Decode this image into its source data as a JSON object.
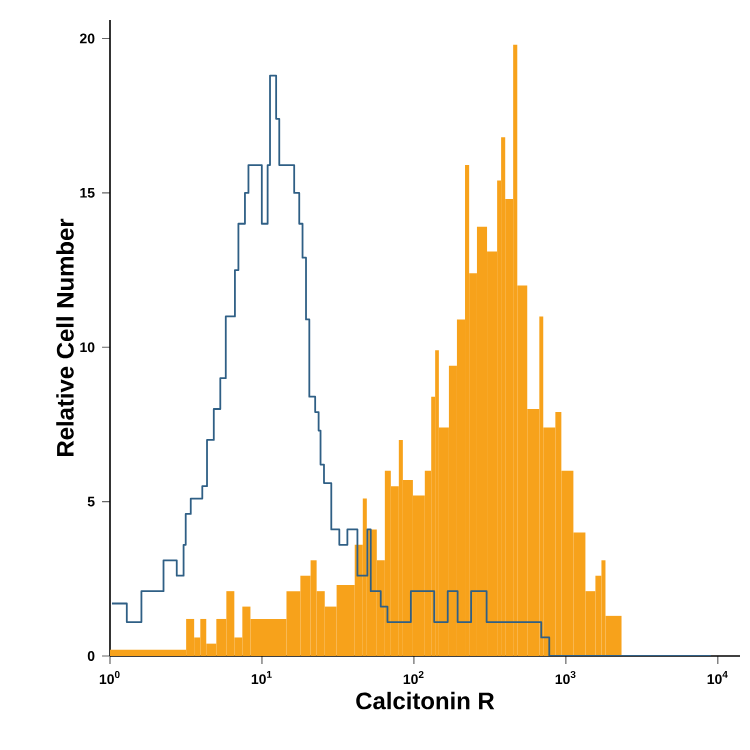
{
  "chart_data": {
    "type": "histogram",
    "xlabel": "Calcitonin R",
    "ylabel": "Relative Cell Number",
    "log": "x",
    "xlim": [
      1,
      14000
    ],
    "ylim": [
      0,
      20.6
    ],
    "xticks": [
      {
        "value": 1,
        "label": "10$^{0}$"
      },
      {
        "value": 10,
        "label": "10$^{1}$"
      },
      {
        "value": 100,
        "label": "10$^{2}$"
      },
      {
        "value": 1000,
        "label": "10$^{3}$"
      },
      {
        "value": 10000,
        "label": "10$^{4}$"
      }
    ],
    "yticks": [
      0,
      5,
      10,
      15,
      20
    ],
    "bins": [
      1,
      3.17,
      3.58,
      3.93,
      4.3,
      5.01,
      5.83,
      6.58,
      7.43,
      8.4,
      14.5,
      17.9,
      20.9,
      22.9,
      25.9,
      31.0,
      40.8,
      46.1,
      49.0,
      57.0,
      64.4,
      70.5,
      79.6,
      84.6,
      98.5,
      118,
      130,
      138,
      146,
      170,
      192,
      217,
      231,
      260,
      303,
      353,
      375,
      399,
      450,
      479,
      557,
      669,
      710,
      853,
      934,
      1121,
      1345,
      1565,
      1715,
      1823,
      2325
    ],
    "series": [
      {
        "color": "#f7a21b",
        "values": [
          0.2,
          1.2,
          0.6,
          1.2,
          0.4,
          1.2,
          2.1,
          0.6,
          1.6,
          1.2,
          2.1,
          2.6,
          3.1,
          2.1,
          1.6,
          2.3,
          3.6,
          5.1,
          4.1,
          3.1,
          6.0,
          5.5,
          7.0,
          5.7,
          5.2,
          6.0,
          8.4,
          9.9,
          7.4,
          9.4,
          10.9,
          15.9,
          12.4,
          13.9,
          13.1,
          15.4,
          16.8,
          14.8,
          19.8,
          12.0,
          8.0,
          11.0,
          7.4,
          7.9,
          6.0,
          4.0,
          2.1,
          2.6,
          3.1,
          1.3
        ]
      },
      {
        "type": "step",
        "color": "#2f5f85",
        "x": [
          1.03,
          1.29,
          1.61,
          2.25,
          2.75,
          3.05,
          3.15,
          3.4,
          4.05,
          4.35,
          4.82,
          5.32,
          5.78,
          6.64,
          7.0,
          7.73,
          8.15,
          9.98,
          10.9,
          11.3,
          12.4,
          13.0,
          16.3,
          17.6,
          18.5,
          19.5,
          20.5,
          22.4,
          23.6,
          24.3,
          25.6,
          28.6,
          32.3,
          36.5,
          42.5,
          49.4,
          52.0,
          60.5,
          67.0,
          95.5,
          136,
          167,
          194,
          238,
          301,
          689,
          778,
          9000
        ],
        "values": [
          1.7,
          1.1,
          2.1,
          3.1,
          2.6,
          3.6,
          4.6,
          5.1,
          5.5,
          7.0,
          8.0,
          9.0,
          11.0,
          12.5,
          14.0,
          15.0,
          15.9,
          14.0,
          15.9,
          18.8,
          17.4,
          15.9,
          15.0,
          14.0,
          12.9,
          10.9,
          8.4,
          7.9,
          7.3,
          6.2,
          5.6,
          4.1,
          3.6,
          4.1,
          2.6,
          4.1,
          2.1,
          1.6,
          1.1,
          2.1,
          1.1,
          2.1,
          1.1,
          2.1,
          1.1,
          0.6,
          0,
          0
        ]
      }
    ]
  }
}
